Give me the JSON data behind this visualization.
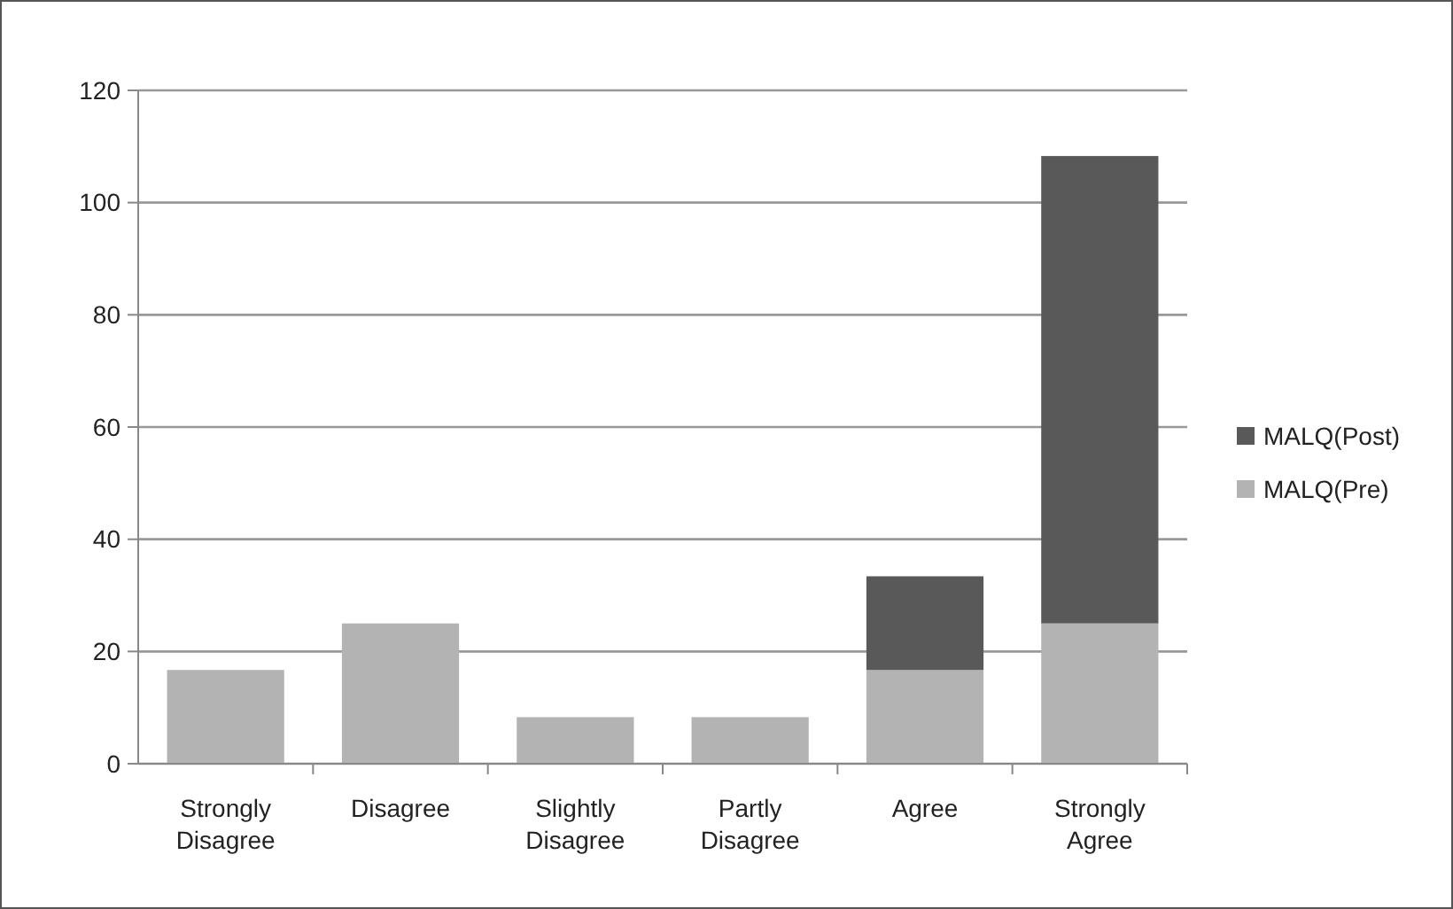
{
  "chart_data": {
    "type": "bar",
    "stacked": true,
    "categories": [
      "Strongly Disagree",
      "Disagree",
      "Slightly Disagree",
      "Partly Disagree",
      "Agree",
      "Strongly Agree"
    ],
    "series": [
      {
        "name": "MALQ(Pre)",
        "color": "#b3b3b3",
        "values": [
          16.7,
          25,
          8.3,
          8.3,
          16.7,
          25
        ]
      },
      {
        "name": "MALQ(Post)",
        "color": "#595959",
        "values": [
          0,
          0,
          0,
          0,
          16.7,
          83.3
        ]
      }
    ],
    "ylim": [
      0,
      120
    ],
    "yticks": [
      0,
      20,
      40,
      60,
      80,
      100,
      120
    ],
    "grid": "y",
    "legend": "right"
  }
}
